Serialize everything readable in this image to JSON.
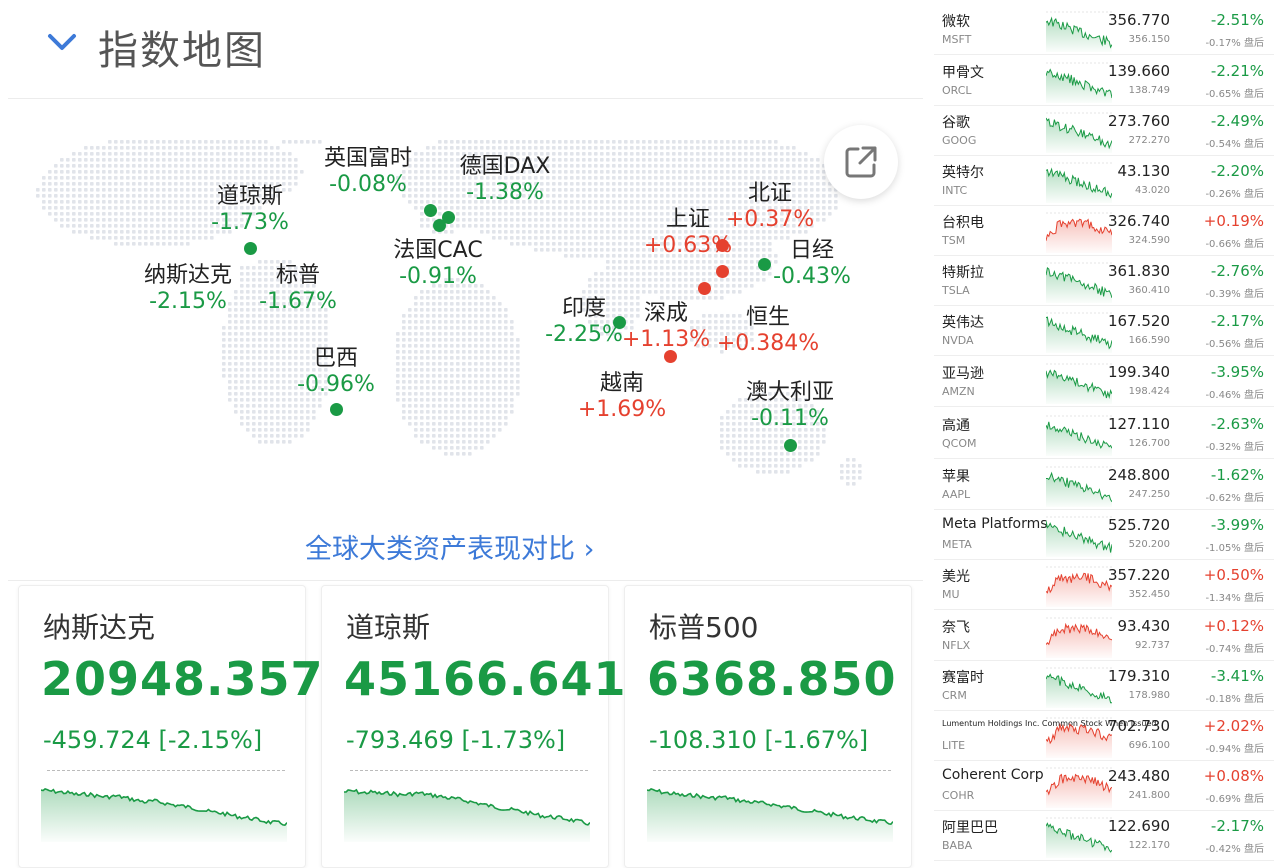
{
  "header": {
    "title": "指数地图"
  },
  "map_markers": [
    {
      "id": "dji",
      "name": "道琼斯",
      "pct": "-1.73%",
      "dir": "down"
    },
    {
      "id": "ixic",
      "name": "纳斯达克",
      "pct": "-2.15%",
      "dir": "down"
    },
    {
      "id": "spx",
      "name": "标普",
      "pct": "-1.67%",
      "dir": "down"
    },
    {
      "id": "bra",
      "name": "巴西",
      "pct": "-0.96%",
      "dir": "down"
    },
    {
      "id": "ftse",
      "name": "英国富时",
      "pct": "-0.08%",
      "dir": "down"
    },
    {
      "id": "dax",
      "name": "德国DAX",
      "pct": "-1.38%",
      "dir": "down"
    },
    {
      "id": "cac",
      "name": "法国CAC",
      "pct": "-0.91%",
      "dir": "down"
    },
    {
      "id": "ind",
      "name": "印度",
      "pct": "-2.25%",
      "dir": "down"
    },
    {
      "id": "szc",
      "name": "深成",
      "pct": "+1.13%",
      "dir": "up"
    },
    {
      "id": "vn",
      "name": "越南",
      "pct": "+1.69%",
      "dir": "up"
    },
    {
      "id": "shc",
      "name": "上证",
      "pct": "+0.63%",
      "dir": "up"
    },
    {
      "id": "bj",
      "name": "北证",
      "pct": "+0.37%",
      "dir": "up"
    },
    {
      "id": "n225",
      "name": "日经",
      "pct": "-0.43%",
      "dir": "down"
    },
    {
      "id": "hsi",
      "name": "恒生",
      "pct": "+0.384%",
      "dir": "up"
    },
    {
      "id": "aus",
      "name": "澳大利亚",
      "pct": "-0.11%",
      "dir": "down"
    }
  ],
  "compare_link": "全球大类资产表现对比 ›",
  "index_cards": [
    {
      "name": "纳斯达克",
      "value": "20948.357",
      "change": "-459.724 [-2.15%]",
      "trend": [
        8,
        9,
        10,
        11,
        13,
        12,
        14,
        15,
        14,
        16,
        18,
        20,
        19,
        21,
        23,
        24,
        26,
        28,
        30,
        31,
        33,
        35,
        36,
        38,
        40,
        41,
        42
      ]
    },
    {
      "name": "道琼斯",
      "value": "45166.641",
      "change": "-793.469 [-1.73%]",
      "trend": [
        10,
        9,
        11,
        10,
        12,
        11,
        13,
        12,
        11,
        13,
        14,
        16,
        17,
        19,
        21,
        23,
        25,
        27,
        28,
        30,
        32,
        34,
        35,
        36,
        38,
        40,
        42
      ]
    },
    {
      "name": "标普500",
      "value": "6368.850",
      "change": "-108.310 [-1.67%]",
      "trend": [
        8,
        9,
        11,
        12,
        14,
        13,
        15,
        16,
        15,
        17,
        19,
        20,
        21,
        22,
        24,
        25,
        27,
        29,
        30,
        32,
        33,
        35,
        36,
        37,
        39,
        40,
        41
      ]
    }
  ],
  "stocks": [
    {
      "name": "微软",
      "symbol": "MSFT",
      "price": "356.770",
      "pct": "-2.51%",
      "pre_price": "356.150",
      "after": "-0.17% 盘后",
      "dir": "down"
    },
    {
      "name": "甲骨文",
      "symbol": "ORCL",
      "price": "139.660",
      "pct": "-2.21%",
      "pre_price": "138.749",
      "after": "-0.65% 盘后",
      "dir": "down"
    },
    {
      "name": "谷歌",
      "symbol": "GOOG",
      "price": "273.760",
      "pct": "-2.49%",
      "pre_price": "272.270",
      "after": "-0.54% 盘后",
      "dir": "down"
    },
    {
      "name": "英特尔",
      "symbol": "INTC",
      "price": "43.130",
      "pct": "-2.20%",
      "pre_price": "43.020",
      "after": "-0.26% 盘后",
      "dir": "down"
    },
    {
      "name": "台积电",
      "symbol": "TSM",
      "price": "326.740",
      "pct": "+0.19%",
      "pre_price": "324.590",
      "after": "-0.66% 盘后",
      "dir": "up"
    },
    {
      "name": "特斯拉",
      "symbol": "TSLA",
      "price": "361.830",
      "pct": "-2.76%",
      "pre_price": "360.410",
      "after": "-0.39% 盘后",
      "dir": "down"
    },
    {
      "name": "英伟达",
      "symbol": "NVDA",
      "price": "167.520",
      "pct": "-2.17%",
      "pre_price": "166.590",
      "after": "-0.56% 盘后",
      "dir": "down"
    },
    {
      "name": "亚马逊",
      "symbol": "AMZN",
      "price": "199.340",
      "pct": "-3.95%",
      "pre_price": "198.424",
      "after": "-0.46% 盘后",
      "dir": "down"
    },
    {
      "name": "高通",
      "symbol": "QCOM",
      "price": "127.110",
      "pct": "-2.63%",
      "pre_price": "126.700",
      "after": "-0.32% 盘后",
      "dir": "down"
    },
    {
      "name": "苹果",
      "symbol": "AAPL",
      "price": "248.800",
      "pct": "-1.62%",
      "pre_price": "247.250",
      "after": "-0.62% 盘后",
      "dir": "down"
    },
    {
      "name": "Meta Platforms",
      "symbol": "META",
      "price": "525.720",
      "pct": "-3.99%",
      "pre_price": "520.200",
      "after": "-1.05% 盘后",
      "dir": "down"
    },
    {
      "name": "美光",
      "symbol": "MU",
      "price": "357.220",
      "pct": "+0.50%",
      "pre_price": "352.450",
      "after": "-1.34% 盘后",
      "dir": "up"
    },
    {
      "name": "奈飞",
      "symbol": "NFLX",
      "price": "93.430",
      "pct": "+0.12%",
      "pre_price": "92.737",
      "after": "-0.74% 盘后",
      "dir": "up"
    },
    {
      "name": "赛富时",
      "symbol": "CRM",
      "price": "179.310",
      "pct": "-3.41%",
      "pre_price": "178.980",
      "after": "-0.18% 盘后",
      "dir": "down"
    },
    {
      "name": "Lumentum Holdings Inc. Common Stock When Issued",
      "symbol": "LITE",
      "price": "702.730",
      "pct": "+2.02%",
      "pre_price": "696.100",
      "after": "-0.94% 盘后",
      "dir": "up"
    },
    {
      "name": "Coherent Corp",
      "symbol": "COHR",
      "price": "243.480",
      "pct": "+0.08%",
      "pre_price": "241.800",
      "after": "-0.69% 盘后",
      "dir": "up"
    },
    {
      "name": "阿里巴巴",
      "symbol": "BABA",
      "price": "122.690",
      "pct": "-2.17%",
      "pre_price": "122.170",
      "after": "-0.42% 盘后",
      "dir": "down"
    }
  ],
  "colors": {
    "up": "#e5412f",
    "down": "#1a9a45",
    "link": "#3d7ad8"
  }
}
